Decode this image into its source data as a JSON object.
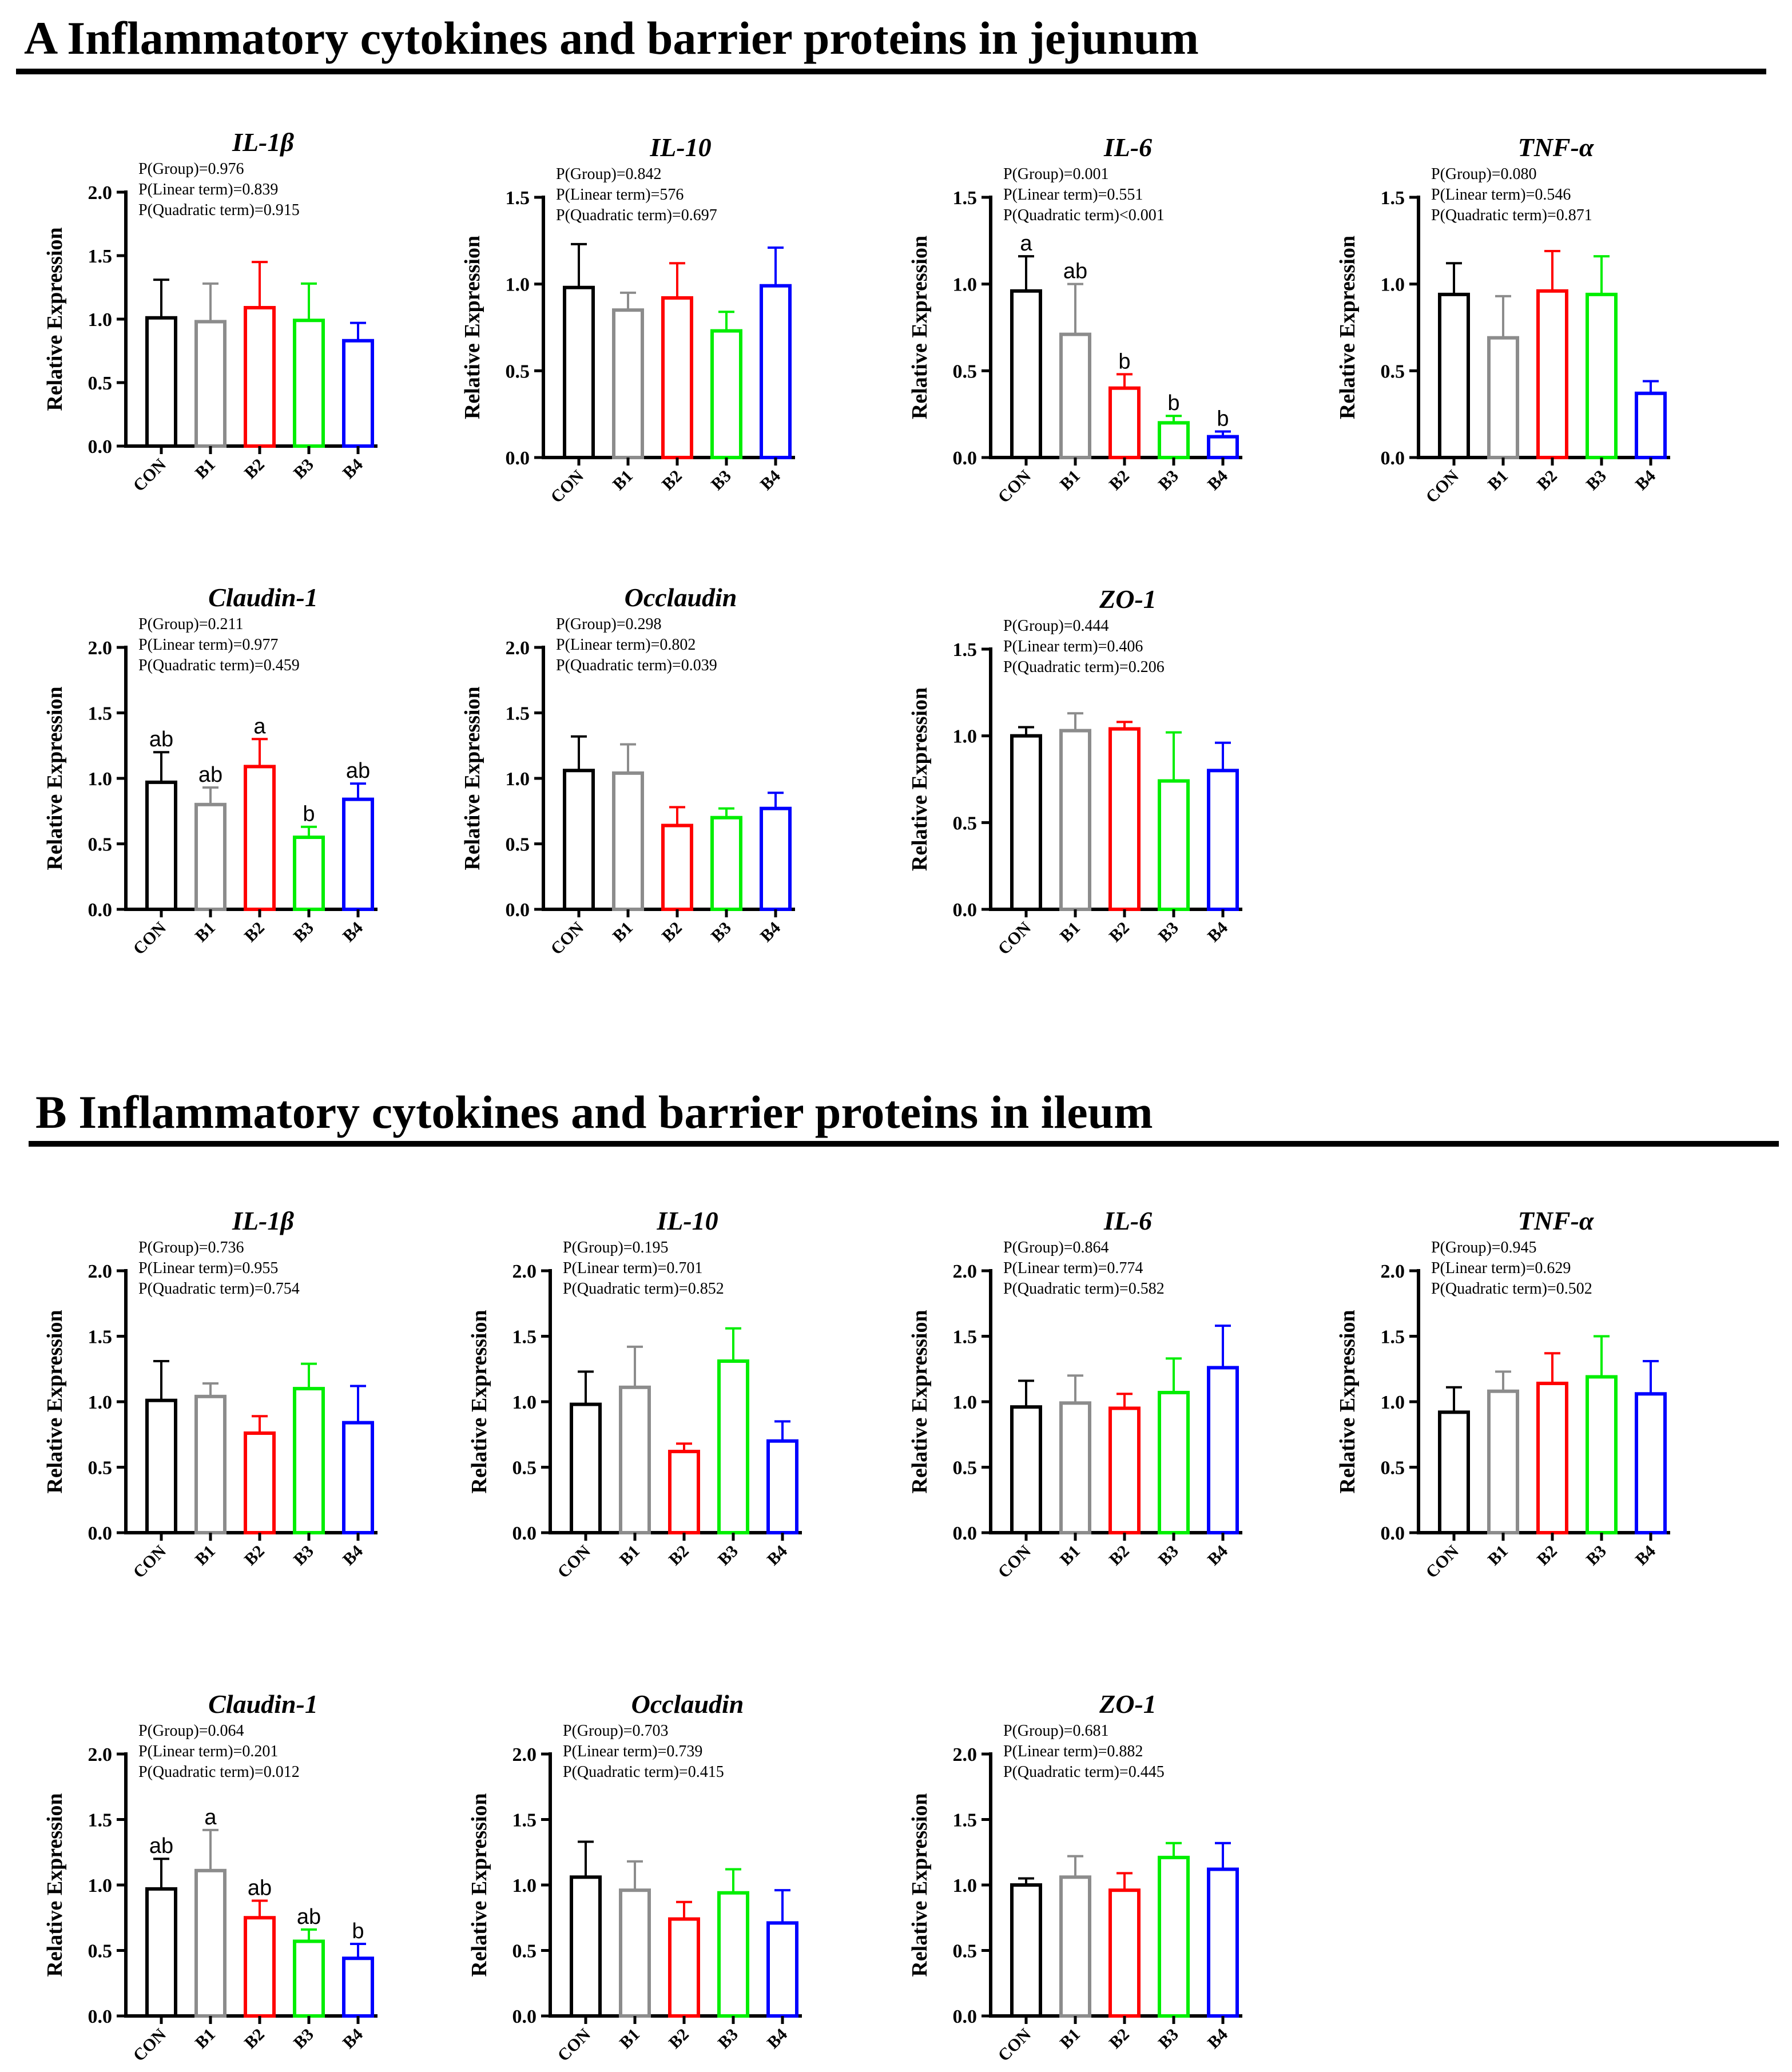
{
  "sections": [
    {
      "title": "A Inflammatory cytokines and barrier proteins in jejunum"
    },
    {
      "title": "B Inflammatory cytokines and barrier proteins in ileum"
    }
  ],
  "colors": {
    "CON": "#000000",
    "B1": "#8c8c8c",
    "B2": "#ff0000",
    "B3": "#00ee00",
    "B4": "#0000ff"
  },
  "chart_data": [
    {
      "type": "bar",
      "section": 0,
      "title": "IL-1β",
      "ylabel": "Relative Expression",
      "categories": [
        "CON",
        "B1",
        "B2",
        "B3",
        "B4"
      ],
      "ylim": [
        0,
        2.0
      ],
      "yticks": [
        0.0,
        0.5,
        1.0,
        1.5,
        2.0
      ],
      "values": [
        1.01,
        0.98,
        1.09,
        0.99,
        0.83
      ],
      "errors": [
        0.3,
        0.3,
        0.36,
        0.29,
        0.14
      ],
      "letters": [
        "",
        "",
        "",
        "",
        ""
      ],
      "stats": [
        "P(Group)=0.976",
        "P(Linear term)=0.839",
        "P(Quadratic term)=0.915"
      ]
    },
    {
      "type": "bar",
      "section": 0,
      "title": "IL-10",
      "ylabel": "Relative Expression",
      "categories": [
        "CON",
        "B1",
        "B2",
        "B3",
        "B4"
      ],
      "ylim": [
        0,
        1.5
      ],
      "yticks": [
        0.0,
        0.5,
        1.0,
        1.5
      ],
      "values": [
        0.98,
        0.85,
        0.92,
        0.73,
        0.99
      ],
      "errors": [
        0.25,
        0.1,
        0.2,
        0.11,
        0.22
      ],
      "letters": [
        "",
        "",
        "",
        "",
        ""
      ],
      "stats": [
        "P(Group)=0.842",
        "P(Linear term)=576",
        "P(Quadratic term)=0.697"
      ]
    },
    {
      "type": "bar",
      "section": 0,
      "title": "IL-6",
      "ylabel": "Relative Expression",
      "categories": [
        "CON",
        "B1",
        "B2",
        "B3",
        "B4"
      ],
      "ylim": [
        0,
        1.5
      ],
      "yticks": [
        0.0,
        0.5,
        1.0,
        1.5
      ],
      "values": [
        0.96,
        0.71,
        0.4,
        0.2,
        0.12
      ],
      "errors": [
        0.2,
        0.29,
        0.08,
        0.04,
        0.03
      ],
      "letters": [
        "a",
        "ab",
        "b",
        "b",
        "b"
      ],
      "stats": [
        "P(Group)=0.001",
        "P(Linear term)=0.551",
        "P(Quadratic term)<0.001"
      ]
    },
    {
      "type": "bar",
      "section": 0,
      "title": "TNF-α",
      "ylabel": "Relative Expression",
      "categories": [
        "CON",
        "B1",
        "B2",
        "B3",
        "B4"
      ],
      "ylim": [
        0,
        1.5
      ],
      "yticks": [
        0.0,
        0.5,
        1.0,
        1.5
      ],
      "values": [
        0.94,
        0.69,
        0.96,
        0.94,
        0.37
      ],
      "errors": [
        0.18,
        0.24,
        0.23,
        0.22,
        0.07
      ],
      "letters": [
        "",
        "",
        "",
        "",
        ""
      ],
      "stats": [
        "P(Group)=0.080",
        "P(Linear term)=0.546",
        "P(Quadratic term)=0.871"
      ]
    },
    {
      "type": "bar",
      "section": 0,
      "title": "Claudin-1",
      "ylabel": "Relative Expression",
      "categories": [
        "CON",
        "B1",
        "B2",
        "B3",
        "B4"
      ],
      "ylim": [
        0,
        2.0
      ],
      "yticks": [
        0.0,
        0.5,
        1.0,
        1.5,
        2.0
      ],
      "values": [
        0.97,
        0.8,
        1.09,
        0.55,
        0.84
      ],
      "errors": [
        0.23,
        0.13,
        0.21,
        0.08,
        0.12
      ],
      "letters": [
        "ab",
        "ab",
        "a",
        "b",
        "ab"
      ],
      "stats": [
        "P(Group)=0.211",
        "P(Linear term)=0.977",
        "P(Quadratic term)=0.459"
      ]
    },
    {
      "type": "bar",
      "section": 0,
      "title": "Occlaudin",
      "ylabel": "Relative Expression",
      "categories": [
        "CON",
        "B1",
        "B2",
        "B3",
        "B4"
      ],
      "ylim": [
        0,
        2.0
      ],
      "yticks": [
        0.0,
        0.5,
        1.0,
        1.5,
        2.0
      ],
      "values": [
        1.06,
        1.04,
        0.64,
        0.7,
        0.77
      ],
      "errors": [
        0.26,
        0.22,
        0.14,
        0.07,
        0.12
      ],
      "letters": [
        "",
        "",
        "",
        "",
        ""
      ],
      "stats": [
        "P(Group)=0.298",
        "P(Linear term)=0.802",
        "P(Quadratic term)=0.039"
      ]
    },
    {
      "type": "bar",
      "section": 0,
      "title": "ZO-1",
      "ylabel": "Relative Expression",
      "categories": [
        "CON",
        "B1",
        "B2",
        "B3",
        "B4"
      ],
      "ylim": [
        0,
        1.5
      ],
      "yticks": [
        0.0,
        0.5,
        1.0,
        1.5
      ],
      "values": [
        1.0,
        1.03,
        1.04,
        0.74,
        0.8
      ],
      "errors": [
        0.05,
        0.1,
        0.04,
        0.28,
        0.16
      ],
      "letters": [
        "",
        "",
        "",
        "",
        ""
      ],
      "stats": [
        "P(Group)=0.444",
        "P(Linear term)=0.406",
        "P(Quadratic term)=0.206"
      ]
    },
    {
      "type": "bar",
      "section": 1,
      "title": "IL-1β",
      "ylabel": "Relative Expression",
      "categories": [
        "CON",
        "B1",
        "B2",
        "B3",
        "B4"
      ],
      "ylim": [
        0,
        2.0
      ],
      "yticks": [
        0.0,
        0.5,
        1.0,
        1.5,
        2.0
      ],
      "values": [
        1.01,
        1.04,
        0.76,
        1.1,
        0.84
      ],
      "errors": [
        0.3,
        0.1,
        0.13,
        0.19,
        0.28
      ],
      "letters": [
        "",
        "",
        "",
        "",
        ""
      ],
      "stats": [
        "P(Group)=0.736",
        "P(Linear term)=0.955",
        "P(Quadratic term)=0.754"
      ]
    },
    {
      "type": "bar",
      "section": 1,
      "title": "IL-10",
      "ylabel": "Relative Expression",
      "categories": [
        "CON",
        "B1",
        "B2",
        "B3",
        "B4"
      ],
      "ylim": [
        0,
        2.0
      ],
      "yticks": [
        0.0,
        0.5,
        1.0,
        1.5,
        2.0
      ],
      "values": [
        0.98,
        1.11,
        0.62,
        1.31,
        0.7
      ],
      "errors": [
        0.25,
        0.31,
        0.06,
        0.25,
        0.15
      ],
      "letters": [
        "",
        "",
        "",
        "",
        ""
      ],
      "stats": [
        "P(Group)=0.195",
        "P(Linear term)=0.701",
        "P(Quadratic term)=0.852"
      ]
    },
    {
      "type": "bar",
      "section": 1,
      "title": "IL-6",
      "ylabel": "Relative Expression",
      "categories": [
        "CON",
        "B1",
        "B2",
        "B3",
        "B4"
      ],
      "ylim": [
        0,
        2.0
      ],
      "yticks": [
        0.0,
        0.5,
        1.0,
        1.5,
        2.0
      ],
      "values": [
        0.96,
        0.99,
        0.95,
        1.07,
        1.26
      ],
      "errors": [
        0.2,
        0.21,
        0.11,
        0.26,
        0.32
      ],
      "letters": [
        "",
        "",
        "",
        "",
        ""
      ],
      "stats": [
        "P(Group)=0.864",
        "P(Linear term)=0.774",
        "P(Quadratic term)=0.582"
      ]
    },
    {
      "type": "bar",
      "section": 1,
      "title": "TNF-α",
      "ylabel": "Relative Expression",
      "categories": [
        "CON",
        "B1",
        "B2",
        "B3",
        "B4"
      ],
      "ylim": [
        0,
        2.0
      ],
      "yticks": [
        0.0,
        0.5,
        1.0,
        1.5,
        2.0
      ],
      "values": [
        0.92,
        1.08,
        1.14,
        1.19,
        1.06
      ],
      "errors": [
        0.19,
        0.15,
        0.23,
        0.31,
        0.25
      ],
      "letters": [
        "",
        "",
        "",
        "",
        ""
      ],
      "stats": [
        "P(Group)=0.945",
        "P(Linear term)=0.629",
        "P(Quadratic term)=0.502"
      ]
    },
    {
      "type": "bar",
      "section": 1,
      "title": "Claudin-1",
      "ylabel": "Relative Expression",
      "categories": [
        "CON",
        "B1",
        "B2",
        "B3",
        "B4"
      ],
      "ylim": [
        0,
        2.0
      ],
      "yticks": [
        0.0,
        0.5,
        1.0,
        1.5,
        2.0
      ],
      "values": [
        0.97,
        1.11,
        0.75,
        0.57,
        0.44
      ],
      "errors": [
        0.23,
        0.31,
        0.13,
        0.09,
        0.11
      ],
      "letters": [
        "ab",
        "a",
        "ab",
        "ab",
        "b"
      ],
      "stats": [
        "P(Group)=0.064",
        "P(Linear term)=0.201",
        "P(Quadratic term)=0.012"
      ]
    },
    {
      "type": "bar",
      "section": 1,
      "title": "Occlaudin",
      "ylabel": "Relative Expression",
      "categories": [
        "CON",
        "B1",
        "B2",
        "B3",
        "B4"
      ],
      "ylim": [
        0,
        2.0
      ],
      "yticks": [
        0.0,
        0.5,
        1.0,
        1.5,
        2.0
      ],
      "values": [
        1.06,
        0.96,
        0.74,
        0.94,
        0.71
      ],
      "errors": [
        0.27,
        0.22,
        0.13,
        0.18,
        0.25
      ],
      "letters": [
        "",
        "",
        "",
        "",
        ""
      ],
      "stats": [
        "P(Group)=0.703",
        "P(Linear term)=0.739",
        "P(Quadratic term)=0.415"
      ]
    },
    {
      "type": "bar",
      "section": 1,
      "title": "ZO-1",
      "ylabel": "Relative Expression",
      "categories": [
        "CON",
        "B1",
        "B2",
        "B3",
        "B4"
      ],
      "ylim": [
        0,
        2.0
      ],
      "yticks": [
        0.0,
        0.5,
        1.0,
        1.5,
        2.0
      ],
      "values": [
        1.0,
        1.06,
        0.96,
        1.21,
        1.12
      ],
      "errors": [
        0.05,
        0.16,
        0.13,
        0.11,
        0.2
      ],
      "letters": [
        "",
        "",
        "",
        "",
        ""
      ],
      "stats": [
        "P(Group)=0.681",
        "P(Linear term)=0.882",
        "P(Quadratic term)=0.445"
      ]
    }
  ]
}
